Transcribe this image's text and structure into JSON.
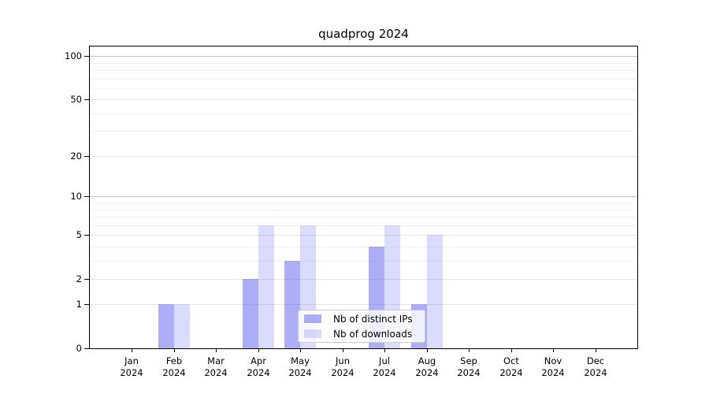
{
  "chart_data": {
    "type": "bar",
    "title": "quadprog 2024",
    "categories": [
      "Jan",
      "Feb",
      "Mar",
      "Apr",
      "May",
      "Jun",
      "Jul",
      "Aug",
      "Sep",
      "Oct",
      "Nov",
      "Dec"
    ],
    "year": "2024",
    "series": [
      {
        "name": "Nb of distinct IPs",
        "color": "rgba(85,85,240,0.48)",
        "values": [
          0,
          1,
          0,
          2,
          3,
          0,
          4,
          1,
          0,
          0,
          0,
          0
        ]
      },
      {
        "name": "Nb of downloads",
        "color": "rgba(85,85,240,0.21)",
        "values": [
          0,
          1,
          0,
          6,
          6,
          0,
          6,
          5,
          0,
          0,
          0,
          0
        ]
      }
    ],
    "xlabel": "",
    "ylabel": "",
    "yscale": "log1p",
    "ylim": [
      0,
      117
    ],
    "y_ticks": [
      0,
      1,
      2,
      5,
      10,
      20,
      50,
      100
    ],
    "y_tick_labels": [
      "0",
      "1",
      "2",
      "5",
      "10",
      "20",
      "50",
      "100"
    ],
    "grid": {
      "on": true,
      "strong_values": [
        10,
        100
      ],
      "medium_values": [
        1,
        2,
        5,
        20,
        50
      ],
      "faint_values": [
        3,
        4,
        6,
        7,
        8,
        9,
        30,
        40,
        60,
        70,
        80,
        90
      ]
    },
    "legend": {
      "position": "lower-center-inside",
      "entries": [
        "Nb of distinct IPs",
        "Nb of downloads"
      ]
    },
    "colors": {
      "distinct_ips_on_white": "#a9a9f7",
      "downloads_on_white": "#dbdbf8",
      "axis": "#000000",
      "grid_strong": "#c2c2c2",
      "grid_faint": "#f2f2f2"
    }
  }
}
